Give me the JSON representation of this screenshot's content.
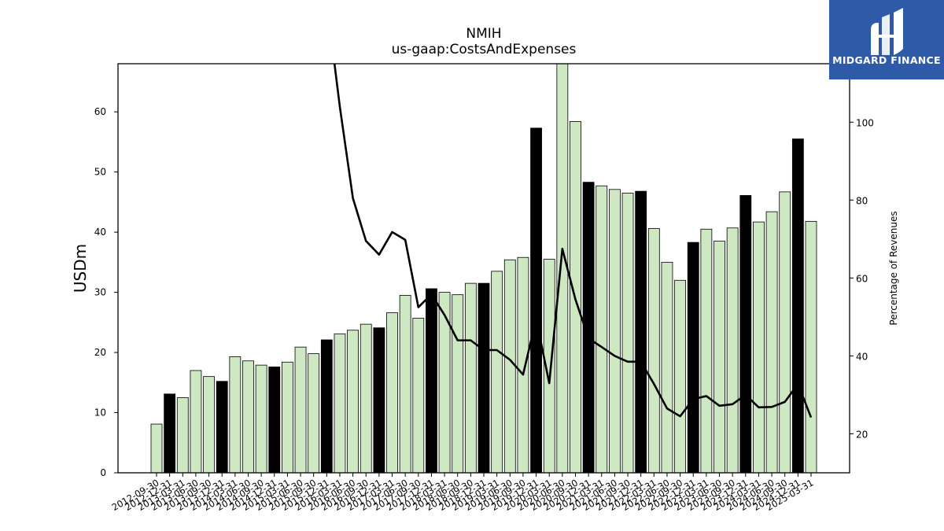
{
  "logo": {
    "text": "MIDGARD FINANCE",
    "bg_color": "#2f5aa8"
  },
  "chart_data": {
    "type": "bar",
    "title": "NMIH",
    "subtitle": "us-gaap:CostsAndExpenses",
    "ylabel": "USDm",
    "y2label": "Percentage of Revenues",
    "ylim": [
      0,
      68
    ],
    "y2lim": [
      10,
      115
    ],
    "yticks": [
      0,
      10,
      20,
      30,
      40,
      50,
      60
    ],
    "y2ticks": [
      20,
      40,
      60,
      80,
      100
    ],
    "bar_color_default": "#cfe8c4",
    "bar_color_annual": "#000000",
    "categories": [
      "2012-09-30",
      "2012-12-31",
      "2013-03-31",
      "2013-06-30",
      "2013-09-30",
      "2013-12-31",
      "2014-03-31",
      "2014-06-30",
      "2014-09-30",
      "2014-12-31",
      "2015-03-31",
      "2015-06-30",
      "2015-09-30",
      "2015-12-31",
      "2016-03-31",
      "2016-06-30",
      "2016-09-30",
      "2016-12-31",
      "2017-03-31",
      "2017-06-30",
      "2017-09-30",
      "2017-12-31",
      "2018-03-31",
      "2018-06-30",
      "2018-09-30",
      "2018-12-31",
      "2019-03-31",
      "2019-06-30",
      "2019-09-30",
      "2019-12-31",
      "2020-03-31",
      "2020-06-30",
      "2020-09-30",
      "2020-12-31",
      "2021-03-31",
      "2021-06-30",
      "2021-09-30",
      "2021-12-31",
      "2022-03-31",
      "2022-06-30",
      "2022-09-30",
      "2022-12-31",
      "2023-03-31",
      "2023-06-30",
      "2023-09-30",
      "2023-12-31",
      "2024-03-31",
      "2024-06-30",
      "2024-09-30",
      "2024-12-31",
      "2025-03-31"
    ],
    "series": [
      {
        "type": "bar",
        "values": [
          8.1,
          13.1,
          12.5,
          17.0,
          16.0,
          15.2,
          19.3,
          18.6,
          17.9,
          17.6,
          18.4,
          20.9,
          19.8,
          22.1,
          23.1,
          23.7,
          24.7,
          24.1,
          26.6,
          29.5,
          25.7,
          30.6,
          30.0,
          29.6,
          31.5,
          31.5,
          33.5,
          35.4,
          35.8,
          57.3,
          35.5,
          69.0,
          58.4,
          48.3,
          47.7,
          47.1,
          46.5,
          46.8,
          40.6,
          35.0,
          32.0,
          38.3,
          40.5,
          38.5,
          40.7,
          46.1,
          41.7,
          43.4,
          46.7,
          55.5,
          41.8
        ],
        "highlight": [
          false,
          true,
          false,
          false,
          false,
          true,
          false,
          false,
          false,
          true,
          false,
          false,
          false,
          true,
          false,
          false,
          false,
          true,
          false,
          false,
          false,
          true,
          false,
          false,
          false,
          true,
          false,
          false,
          false,
          true,
          false,
          false,
          false,
          true,
          false,
          false,
          false,
          true,
          false,
          false,
          false,
          true,
          false,
          false,
          false,
          true,
          false,
          false,
          false,
          true,
          false
        ]
      },
      {
        "type": "line",
        "axis": "right",
        "color": "#000000",
        "values": [
          null,
          null,
          null,
          null,
          null,
          null,
          null,
          null,
          null,
          null,
          null,
          null,
          null,
          131.0,
          104.0,
          80.5,
          69.5,
          66.0,
          71.8,
          69.8,
          52.5,
          55.8,
          50.5,
          44.0,
          44.0,
          41.5,
          41.5,
          39.0,
          35.2,
          49.5,
          33.0,
          67.5,
          54.5,
          44.5,
          42.3,
          40.0,
          38.5,
          38.5,
          32.8,
          26.5,
          24.5,
          28.9,
          29.7,
          27.2,
          27.6,
          30.0,
          26.8,
          26.9,
          28.2,
          32.8,
          24.2
        ]
      }
    ]
  }
}
